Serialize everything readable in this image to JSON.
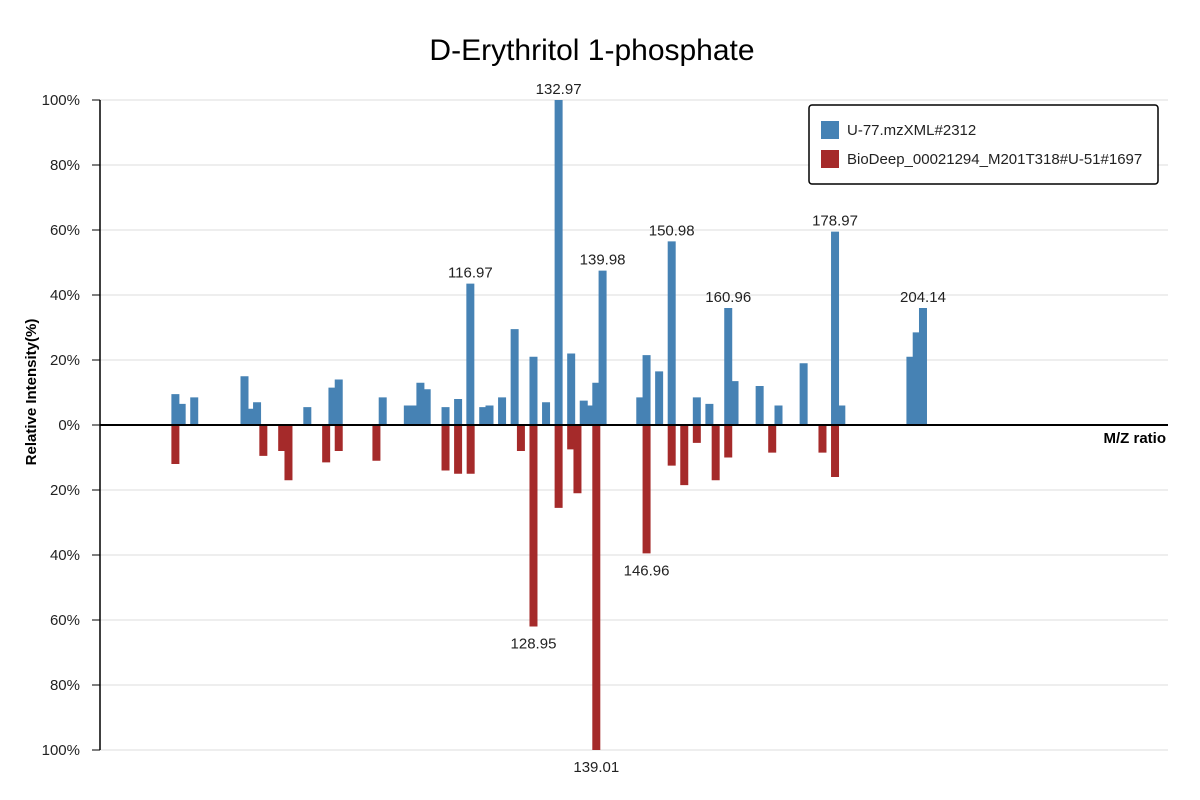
{
  "chart_data": {
    "type": "bar",
    "title": "D-Erythritol 1-phosphate",
    "xlabel": "M/Z ratio",
    "ylabel": "Relative Intensity(%)",
    "xlim": [
      70,
      240
    ],
    "ylim_top": [
      0,
      100
    ],
    "ylim_bottom": [
      0,
      100
    ],
    "yticks_top": [
      "0%",
      "20%",
      "40%",
      "60%",
      "80%",
      "100%"
    ],
    "yticks_bottom": [
      "20%",
      "40%",
      "60%",
      "80%",
      "100%"
    ],
    "grid": true,
    "legend_position": "top-right",
    "colors": {
      "top": "#4682b4",
      "bottom": "#a52a2a"
    },
    "series": [
      {
        "name": "U-77.mzXML#2312",
        "direction": "up",
        "peaks": [
          {
            "mz": 82.0,
            "intensity": 9.5
          },
          {
            "mz": 83.0,
            "intensity": 6.5
          },
          {
            "mz": 85.0,
            "intensity": 8.5
          },
          {
            "mz": 93.0,
            "intensity": 15.0
          },
          {
            "mz": 94.0,
            "intensity": 5.0
          },
          {
            "mz": 95.0,
            "intensity": 7.0
          },
          {
            "mz": 103.0,
            "intensity": 5.5
          },
          {
            "mz": 107.0,
            "intensity": 11.5
          },
          {
            "mz": 108.0,
            "intensity": 14.0
          },
          {
            "mz": 115.0,
            "intensity": 8.5
          },
          {
            "mz": 119.0,
            "intensity": 6.0
          },
          {
            "mz": 120.0,
            "intensity": 6.0
          },
          {
            "mz": 121.0,
            "intensity": 13.0
          },
          {
            "mz": 122.0,
            "intensity": 11.0
          },
          {
            "mz": 125.0,
            "intensity": 5.5
          },
          {
            "mz": 127.0,
            "intensity": 8.0
          },
          {
            "mz": 128.95,
            "intensity": 43.5,
            "label": "116.97"
          },
          {
            "mz": 131.0,
            "intensity": 5.5
          },
          {
            "mz": 132.0,
            "intensity": 6.0
          },
          {
            "mz": 134.0,
            "intensity": 8.5
          },
          {
            "mz": 136.0,
            "intensity": 29.5
          },
          {
            "mz": 139.0,
            "intensity": 21.0
          },
          {
            "mz": 141.0,
            "intensity": 7.0
          },
          {
            "mz": 143.0,
            "intensity": 100.0,
            "label": "132.97"
          },
          {
            "mz": 145.0,
            "intensity": 22.0
          },
          {
            "mz": 147.0,
            "intensity": 7.5
          },
          {
            "mz": 148.0,
            "intensity": 6.0
          },
          {
            "mz": 149.0,
            "intensity": 13.0
          },
          {
            "mz": 150.0,
            "intensity": 47.5,
            "label": "139.98"
          },
          {
            "mz": 156.0,
            "intensity": 8.5
          },
          {
            "mz": 157.0,
            "intensity": 21.5
          },
          {
            "mz": 159.0,
            "intensity": 16.5
          },
          {
            "mz": 161.0,
            "intensity": 56.5,
            "label": "150.98"
          },
          {
            "mz": 165.0,
            "intensity": 8.5
          },
          {
            "mz": 167.0,
            "intensity": 6.5
          },
          {
            "mz": 170.0,
            "intensity": 36.0,
            "label": "160.96"
          },
          {
            "mz": 171.0,
            "intensity": 13.5
          },
          {
            "mz": 175.0,
            "intensity": 12.0
          },
          {
            "mz": 178.0,
            "intensity": 6.0
          },
          {
            "mz": 182.0,
            "intensity": 19.0
          },
          {
            "mz": 187.0,
            "intensity": 59.5,
            "label": "178.97"
          },
          {
            "mz": 188.0,
            "intensity": 6.0
          },
          {
            "mz": 199.0,
            "intensity": 21.0
          },
          {
            "mz": 200.0,
            "intensity": 28.5
          },
          {
            "mz": 201.0,
            "intensity": 36.0,
            "label": "204.14"
          }
        ]
      },
      {
        "name": "BioDeep_00021294_M201T318#U-51#1697",
        "direction": "down",
        "peaks": [
          {
            "mz": 82.0,
            "intensity": 12.0
          },
          {
            "mz": 96.0,
            "intensity": 9.5
          },
          {
            "mz": 99.0,
            "intensity": 8.0
          },
          {
            "mz": 100.0,
            "intensity": 17.0
          },
          {
            "mz": 106.0,
            "intensity": 11.5
          },
          {
            "mz": 108.0,
            "intensity": 8.0
          },
          {
            "mz": 114.0,
            "intensity": 11.0
          },
          {
            "mz": 125.0,
            "intensity": 14.0
          },
          {
            "mz": 127.0,
            "intensity": 15.0
          },
          {
            "mz": 129.0,
            "intensity": 15.0
          },
          {
            "mz": 137.0,
            "intensity": 8.0
          },
          {
            "mz": 139.0,
            "intensity": 62.0,
            "label": "128.95"
          },
          {
            "mz": 143.0,
            "intensity": 25.5
          },
          {
            "mz": 145.0,
            "intensity": 7.5
          },
          {
            "mz": 146.0,
            "intensity": 21.0
          },
          {
            "mz": 149.0,
            "intensity": 100.0,
            "label": "139.01"
          },
          {
            "mz": 157.0,
            "intensity": 39.5,
            "label": "146.96"
          },
          {
            "mz": 161.0,
            "intensity": 12.5
          },
          {
            "mz": 163.0,
            "intensity": 18.5
          },
          {
            "mz": 165.0,
            "intensity": 5.5
          },
          {
            "mz": 168.0,
            "intensity": 17.0
          },
          {
            "mz": 170.0,
            "intensity": 10.0
          },
          {
            "mz": 177.0,
            "intensity": 8.5
          },
          {
            "mz": 185.0,
            "intensity": 8.5
          },
          {
            "mz": 187.0,
            "intensity": 16.0
          }
        ]
      }
    ]
  }
}
